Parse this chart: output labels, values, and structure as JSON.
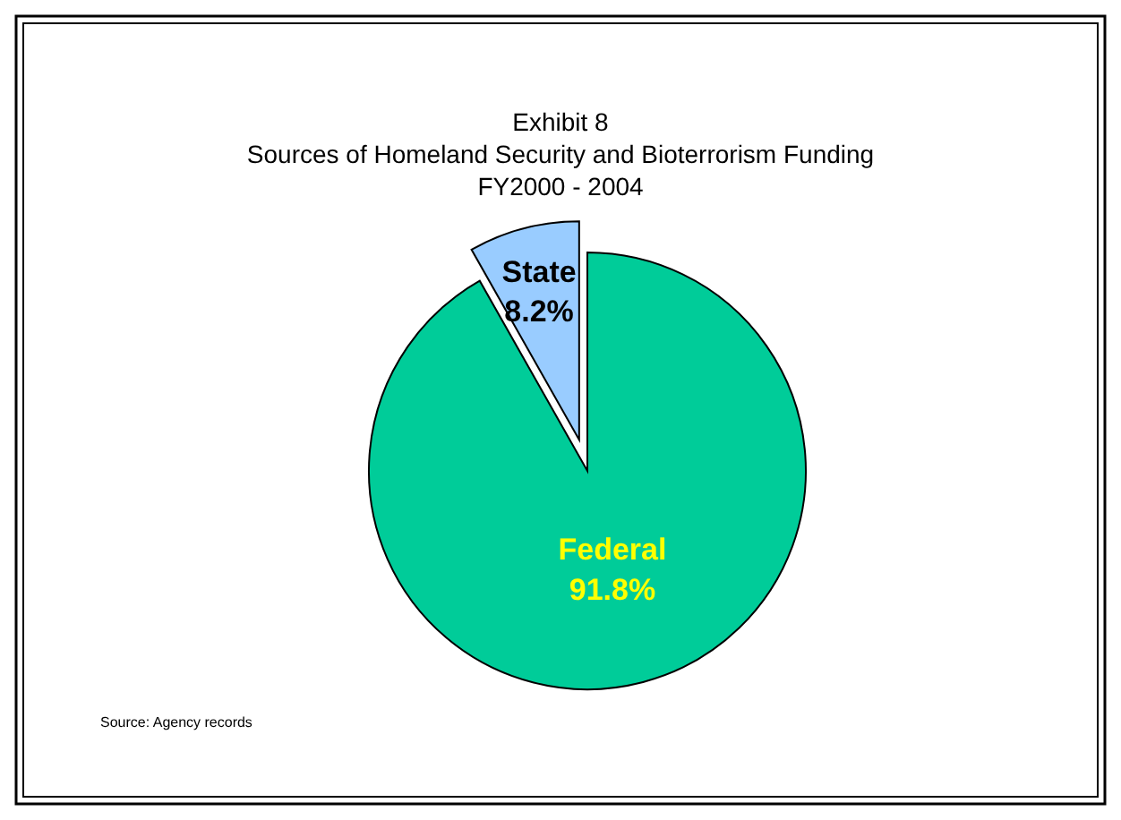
{
  "chart_data": {
    "type": "pie",
    "title": "Exhibit 8",
    "subtitle": "Sources of Homeland Security and Bioterrorism Funding\nFY2000 - 2004",
    "categories": [
      "Federal",
      "State"
    ],
    "values": [
      91.8,
      8.2
    ],
    "colors": [
      "#00cc99",
      "#99ccff"
    ],
    "value_labels": [
      "91.8%",
      "8.2%"
    ],
    "annotations": [
      "Source:  Agency records"
    ]
  }
}
